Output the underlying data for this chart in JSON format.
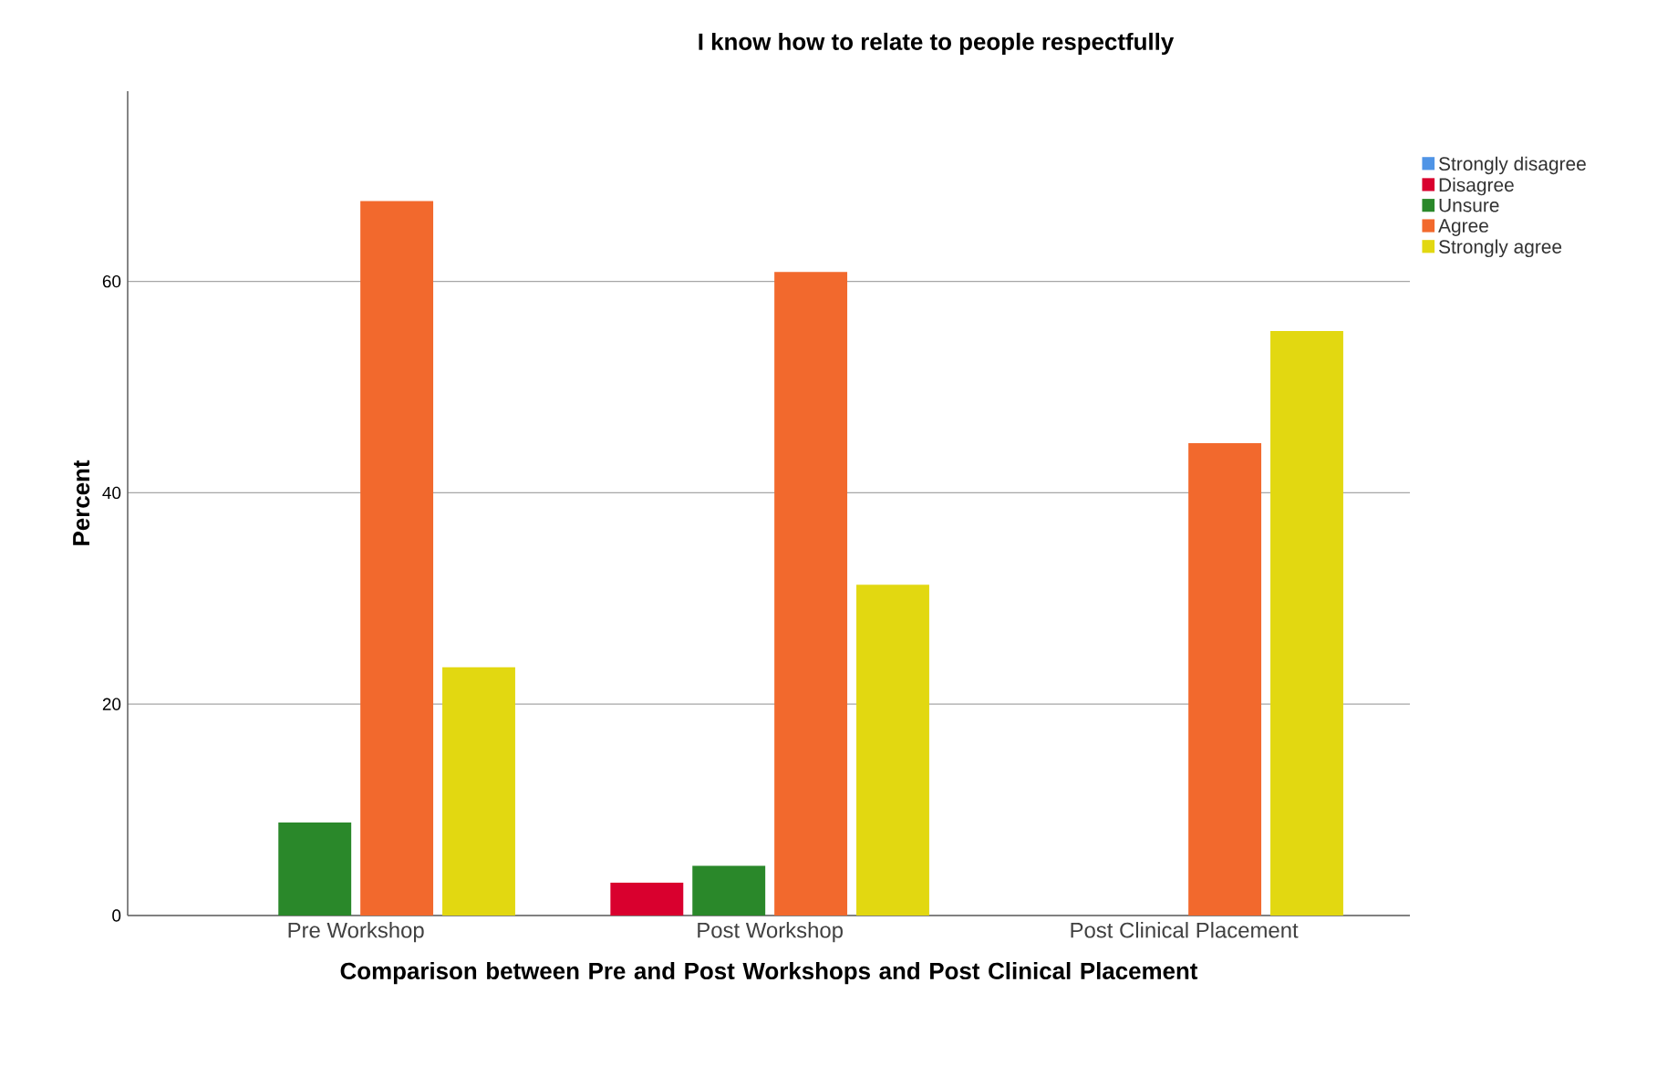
{
  "chart_data": {
    "type": "bar",
    "title": "I know how to relate to people respectfully",
    "xlabel": "Comparison between Pre and Post Workshops and Post Clinical Placement",
    "ylabel": "Percent",
    "categories": [
      "Pre Workshop",
      "Post Workshop",
      "Post Clinical Placement"
    ],
    "series": [
      {
        "name": "Strongly disagree",
        "color": "#4f94e6",
        "values": [
          0,
          0,
          0
        ]
      },
      {
        "name": "Disagree",
        "color": "#d9002e",
        "values": [
          0,
          3.1,
          0
        ]
      },
      {
        "name": "Unsure",
        "color": "#2a882a",
        "values": [
          8.8,
          4.7,
          0
        ]
      },
      {
        "name": "Agree",
        "color": "#f2692d",
        "values": [
          67.6,
          60.9,
          44.7
        ]
      },
      {
        "name": "Strongly agree",
        "color": "#e2d811",
        "values": [
          23.5,
          31.3,
          55.3
        ]
      }
    ],
    "ylim": [
      0,
      78
    ],
    "yticks": [
      0,
      20,
      40,
      60
    ],
    "grid": "y",
    "legend": "top right"
  }
}
